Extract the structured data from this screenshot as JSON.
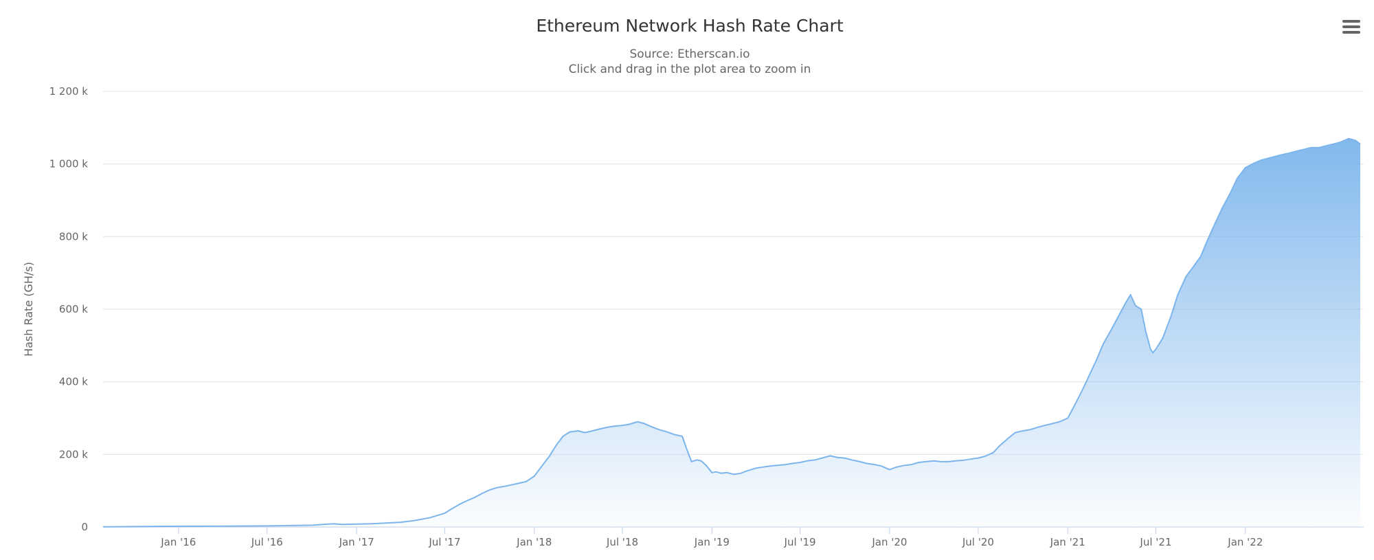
{
  "chart_data": {
    "type": "area",
    "title": "Ethereum Network Hash Rate Chart",
    "subtitle_lines": [
      "Source: Etherscan.io",
      "Click and drag in the plot area to zoom in"
    ],
    "xlabel": "",
    "ylabel": "Hash Rate (GH/s)",
    "ylim": [
      0,
      1200000
    ],
    "yticks": [
      0,
      200000,
      400000,
      600000,
      800000,
      1000000,
      1200000
    ],
    "ytick_labels": [
      "0",
      "200 k",
      "400 k",
      "600 k",
      "800 k",
      "1 000 k",
      "1 200 k"
    ],
    "xlim": [
      "2015-07-30",
      "2022-09-01"
    ],
    "xticks": [
      {
        "date": "2016-01-01",
        "label": "Jan '16"
      },
      {
        "date": "2016-07-01",
        "label": "Jul '16"
      },
      {
        "date": "2017-01-01",
        "label": "Jan '17"
      },
      {
        "date": "2017-07-01",
        "label": "Jul '17"
      },
      {
        "date": "2018-01-01",
        "label": "Jan '18"
      },
      {
        "date": "2018-07-01",
        "label": "Jul '18"
      },
      {
        "date": "2019-01-01",
        "label": "Jan '19"
      },
      {
        "date": "2019-07-01",
        "label": "Jul '19"
      },
      {
        "date": "2020-01-01",
        "label": "Jan '20"
      },
      {
        "date": "2020-07-01",
        "label": "Jul '20"
      },
      {
        "date": "2021-01-01",
        "label": "Jan '21"
      },
      {
        "date": "2021-07-01",
        "label": "Jul '21"
      },
      {
        "date": "2022-01-01",
        "label": "Jan '22"
      }
    ],
    "grid": true,
    "legend": "none",
    "colors": {
      "line": "#7cb5ec",
      "fill_top": "#7cb5ec",
      "fill_bottom": "#ffffff"
    },
    "series": [
      {
        "x": [
          "2015-07-30",
          "2015-10-01",
          "2016-01-01",
          "2016-04-01",
          "2016-07-01",
          "2016-10-01",
          "2016-11-15",
          "2016-12-01",
          "2017-01-01",
          "2017-02-01",
          "2017-03-01",
          "2017-04-01",
          "2017-05-01",
          "2017-06-01",
          "2017-07-01",
          "2017-07-15",
          "2017-08-01",
          "2017-08-15",
          "2017-09-01",
          "2017-09-15",
          "2017-10-01",
          "2017-10-15",
          "2017-11-01",
          "2017-11-15",
          "2017-12-01",
          "2017-12-15",
          "2018-01-01",
          "2018-01-15",
          "2018-02-01",
          "2018-02-15",
          "2018-03-01",
          "2018-03-15",
          "2018-04-01",
          "2018-04-15",
          "2018-05-01",
          "2018-05-15",
          "2018-06-01",
          "2018-06-15",
          "2018-07-01",
          "2018-07-15",
          "2018-08-01",
          "2018-08-15",
          "2018-09-01",
          "2018-09-15",
          "2018-10-01",
          "2018-10-15",
          "2018-11-01",
          "2018-11-10",
          "2018-11-20",
          "2018-12-01",
          "2018-12-10",
          "2018-12-20",
          "2019-01-01",
          "2019-01-10",
          "2019-01-20",
          "2019-02-01",
          "2019-02-15",
          "2019-03-01",
          "2019-03-15",
          "2019-04-01",
          "2019-04-15",
          "2019-05-01",
          "2019-05-15",
          "2019-06-01",
          "2019-06-15",
          "2019-07-01",
          "2019-07-15",
          "2019-08-01",
          "2019-08-15",
          "2019-09-01",
          "2019-09-15",
          "2019-10-01",
          "2019-10-15",
          "2019-11-01",
          "2019-11-15",
          "2019-12-01",
          "2019-12-15",
          "2020-01-01",
          "2020-01-15",
          "2020-02-01",
          "2020-02-15",
          "2020-03-01",
          "2020-03-15",
          "2020-04-01",
          "2020-04-15",
          "2020-05-01",
          "2020-05-15",
          "2020-06-01",
          "2020-06-15",
          "2020-07-01",
          "2020-07-15",
          "2020-08-01",
          "2020-08-15",
          "2020-09-01",
          "2020-09-15",
          "2020-10-01",
          "2020-10-15",
          "2020-11-01",
          "2020-11-15",
          "2020-12-01",
          "2020-12-15",
          "2021-01-01",
          "2021-01-15",
          "2021-02-01",
          "2021-02-15",
          "2021-03-01",
          "2021-03-15",
          "2021-04-01",
          "2021-04-15",
          "2021-05-01",
          "2021-05-10",
          "2021-05-20",
          "2021-06-01",
          "2021-06-10",
          "2021-06-20",
          "2021-06-25",
          "2021-07-01",
          "2021-07-15",
          "2021-08-01",
          "2021-08-15",
          "2021-09-01",
          "2021-09-15",
          "2021-10-01",
          "2021-10-15",
          "2021-11-01",
          "2021-11-15",
          "2021-12-01",
          "2021-12-15",
          "2022-01-01",
          "2022-01-15",
          "2022-02-01",
          "2022-02-15",
          "2022-03-01",
          "2022-03-15",
          "2022-04-01",
          "2022-04-15",
          "2022-05-01",
          "2022-05-15",
          "2022-06-01",
          "2022-06-15",
          "2022-07-01",
          "2022-07-15",
          "2022-08-01",
          "2022-08-15",
          "2022-08-25"
        ],
        "y": [
          500,
          1200,
          2000,
          2500,
          3000,
          5000,
          9000,
          7000,
          8000,
          9000,
          11000,
          13000,
          18000,
          26000,
          38000,
          50000,
          63000,
          72000,
          82000,
          92000,
          102000,
          108000,
          112000,
          116000,
          121000,
          125000,
          140000,
          165000,
          195000,
          225000,
          250000,
          262000,
          265000,
          260000,
          265000,
          270000,
          275000,
          278000,
          280000,
          283000,
          290000,
          285000,
          275000,
          268000,
          262000,
          255000,
          250000,
          215000,
          180000,
          185000,
          182000,
          170000,
          150000,
          152000,
          148000,
          150000,
          145000,
          148000,
          155000,
          162000,
          165000,
          168000,
          170000,
          172000,
          175000,
          178000,
          182000,
          185000,
          190000,
          196000,
          192000,
          190000,
          185000,
          180000,
          175000,
          172000,
          168000,
          158000,
          165000,
          170000,
          172000,
          178000,
          180000,
          182000,
          180000,
          180000,
          182000,
          184000,
          187000,
          190000,
          195000,
          205000,
          225000,
          245000,
          260000,
          265000,
          268000,
          275000,
          280000,
          285000,
          290000,
          300000,
          335000,
          380000,
          420000,
          460000,
          505000,
          545000,
          580000,
          620000,
          640000,
          610000,
          600000,
          540000,
          490000,
          480000,
          490000,
          520000,
          580000,
          640000,
          690000,
          715000,
          745000,
          790000,
          840000,
          880000,
          920000,
          960000,
          990000,
          1000000,
          1010000,
          1015000,
          1020000,
          1025000,
          1030000,
          1035000,
          1040000,
          1045000,
          1045000,
          1050000,
          1055000,
          1060000,
          1070000,
          1065000,
          1055000
        ]
      }
    ]
  },
  "menu": {
    "icon": "hamburger-menu-icon"
  }
}
